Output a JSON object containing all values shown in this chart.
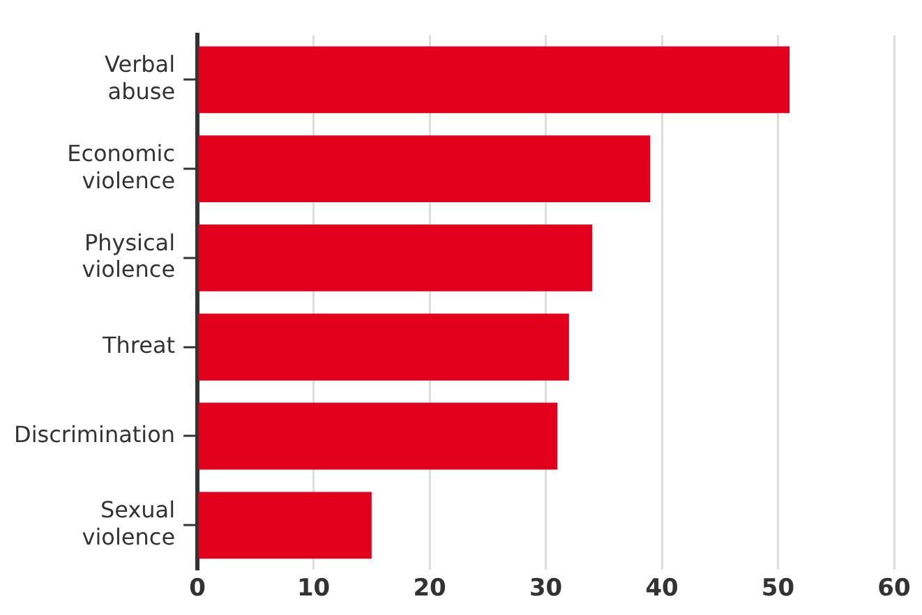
{
  "chart_data": {
    "type": "bar",
    "orientation": "horizontal",
    "categories": [
      "Verbal abuse",
      "Economic violence",
      "Physical violence",
      "Threat",
      "Discrimination",
      "Sexual violence"
    ],
    "values": [
      51,
      39,
      34,
      32,
      31,
      15
    ],
    "color": "#e2001d",
    "xlim": [
      0,
      60
    ],
    "xticks": [
      0,
      10,
      20,
      30,
      40,
      50,
      60
    ],
    "grid": "x"
  }
}
